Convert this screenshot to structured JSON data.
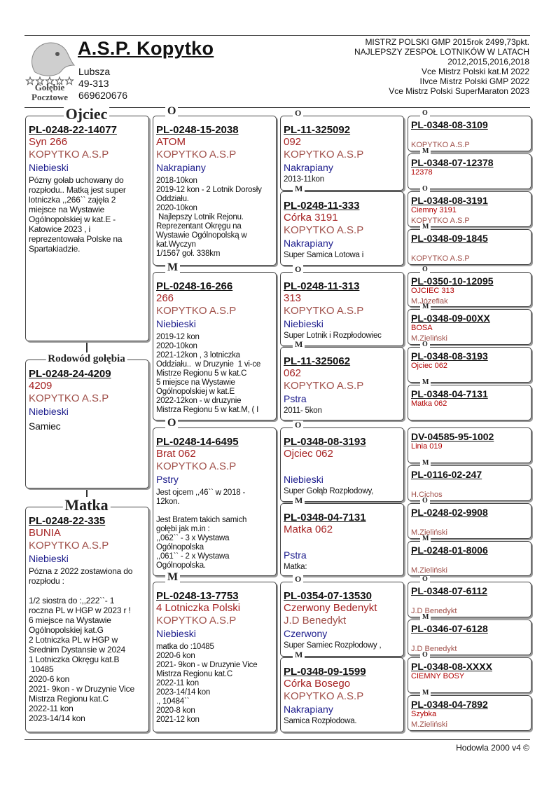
{
  "header": {
    "logo_lines": [
      "Gołębie",
      "Pocztowe"
    ],
    "title": "A.S.P. Kopytko",
    "address": [
      "Lubsza",
      "49-313",
      "669620676"
    ],
    "achievements": [
      "MISTRZ POLSKI GMP 2015rok 2499,73pkt.",
      "NAJLEPSZY ZESPOŁ LOTNIKÓW W LATACH",
      "2012,2015,2016,2018",
      "Vce Mistrz Polski kat.M 2022",
      "IIvce Mistrz Polski GMP 2022",
      "Vce Mistrz Polski SuperMaraton 2023"
    ]
  },
  "pedigree": {
    "sire": {
      "label": "Ojciec",
      "ring": "PL-0248-22-14077",
      "name": "Syn 266",
      "breeder": "KOPYTKO A.S.P",
      "color": "Niebieski",
      "notes": "Pózny gołab uchowany do\nrozpłodu.. Matką jest super\nlotniczka ,,266`` zajęła 2\nmiejsce na Wystawie\nOgólnopolskiej w kat.E -\nKatowice 2023 , i\nreprezentowała Polske na\nSpartakiadzie."
    },
    "subject": {
      "label": "Rodowód gołębia",
      "ring": "PL-0248-24-4209",
      "name": "4209",
      "breeder": "KOPYTKO A.S.P",
      "color": "Niebieski",
      "notes": "Samiec"
    },
    "dam": {
      "label": "Matka",
      "ring": "PL-0248-22-335",
      "name": "BUNIA",
      "breeder": "KOPYTKO A.S.P",
      "color": "Niebieski",
      "notes": "Pózna z 2022 zostawiona do\nrozpłodu :\n\n1/2 siostra do :,,222``- 1\nroczna PL w HGP w 2023 r !\n6 miejsce na Wystawie\nOgólnopolskiej kat.G\n2 Lotniczka PL w HGP w\nSrednim Dystansie w 2024\n1 Lotniczka Okręgu kat.B\n 10485\n2020-6 kon\n2021- 9kon - w Druzynie Vice\nMistrza Regionu kat.C\n2022-11 kon\n2023-14/14 kon"
    },
    "generation_2": [
      {
        "label": "O",
        "ring": "PL-0248-15-2038",
        "name": "ATOM",
        "breeder": "KOPYTKO A.S.P",
        "color": "Nakrapiany",
        "notes": "2018-10kon\n2019-12 kon - 2 Lotnik Dorosły\nOddziału.\n2020-10kon\n Najlepszy Lotnik Rejonu.\nReprezentant Okręgu na\nWystawie Ogólnopolską w\nkat.Wyczyn\n1/1567 goł. 338km"
      },
      {
        "label": "M",
        "ring": "PL-0248-16-266",
        "name": "266",
        "breeder": "KOPYTKO A.S.P",
        "color": "Niebieski",
        "notes": "2019-12 kon\n2020-10kon\n2021-12kon , 3 lotniczka\nOddziału..  w Druzynie  1 vi-ce\nMistrze Regionu 5 w kat.C\n5 miejsce na Wystawie\nOgólnopolskiej w kat.E\n2022-12kon - w druzynie\nMistrza Regionu 5 w kat.M, ( I"
      },
      {
        "label": "O",
        "ring": "PL-0248-14-6495",
        "name": "Brat 062",
        "breeder": "KOPYTKO A.S.P",
        "color": "Pstry",
        "notes": "Jest ojcem ,,46`` w 2018 -\n12kon.\n\nJest Bratem takich samich\ngołębi jak m.in :\n,,062`` - 3 x Wystawa\nOgólnopolska\n,,061`` - 2 x Wystawa\nOgólnopolska."
      },
      {
        "label": "M",
        "ring": "PL-0248-13-7753",
        "name": "4 Lotniczka Polski",
        "breeder": "KOPYTKO A.S.P",
        "color": "Niebieski",
        "notes": "matka do :10485\n2020-6 kon\n2021- 9kon - w Druzynie Vice\nMistrza Regionu kat.C\n2022-11 kon\n2023-14/14 kon\n., 10484``\n2020-8 kon\n2021-12 kon"
      }
    ],
    "generation_3": [
      {
        "label": "O",
        "ring": "PL-11-325092",
        "name": "092",
        "breeder": "KOPYTKO A.S.P",
        "color": "Nakrapiany",
        "notes": "2013-11kon"
      },
      {
        "label": "M",
        "ring": "PL-0248-11-333",
        "name": "Córka 3191",
        "breeder": "KOPYTKO A.S.P",
        "color": "Nakrapiany",
        "notes": "Super Samica Lotowa i"
      },
      {
        "label": "O",
        "ring": "PL-0248-11-313",
        "name": "313",
        "breeder": "KOPYTKO A.S.P",
        "color": "Niebieski",
        "notes": "Super Lotnik i Rozpłodowiec"
      },
      {
        "label": "M",
        "ring": "PL-11-325062",
        "name": "062",
        "breeder": "KOPYTKO A.S.P",
        "color": "Pstra",
        "notes": "2011- 5kon"
      },
      {
        "label": "O",
        "ring": "PL-0348-08-3193",
        "name": "Ojciec 062",
        "color": "Niebieski",
        "notes": "Super Gołąb Rozpłodowy,"
      },
      {
        "label": "M",
        "ring": "PL-0348-04-7131",
        "name": "Matka 062",
        "color": "Pstra",
        "notes": "Matka:"
      },
      {
        "label": "O",
        "ring": "PL-0354-07-13530",
        "name": "Czerwony Bedenykt",
        "breeder": "J.D Benedykt",
        "color": "Czerwony",
        "notes": "Super Samiec Rozpłodowy ,"
      },
      {
        "label": "M",
        "ring": "PL-0348-09-1599",
        "name": "Córka Bosego",
        "breeder": "KOPYTKO A.S.P",
        "color": "Nakrapiany",
        "notes": "Samica Rozpłodowa."
      }
    ],
    "generation_4": [
      {
        "label": "O",
        "ring": "PL-0348-08-3109",
        "breeder": "KOPYTKO A.S.P"
      },
      {
        "label": "M",
        "ring": "PL-0348-07-12378",
        "name": "12378"
      },
      {
        "label": "O",
        "ring": "PL-0348-08-3191",
        "name": "Ciemny 3191",
        "breeder": "KOPYTKO A.S.P"
      },
      {
        "label": "M",
        "ring": "PL-0348-09-1845",
        "breeder": "KOPYTKO A.S.P"
      },
      {
        "label": "O",
        "ring": "PL-0350-10-12095",
        "name": "OJCIEC 313",
        "breeder": "M.Józefiak"
      },
      {
        "label": "M",
        "ring": "PL-0348-09-00XX",
        "name": "BOSA",
        "breeder": "M.Zieliński"
      },
      {
        "label": "O",
        "ring": "PL-0348-08-3193",
        "name": "Ojciec 062"
      },
      {
        "label": "M",
        "ring": "PL-0348-04-7131",
        "name": "Matka 062"
      },
      {
        "ring": "DV-04585-95-1002",
        "name": "Linia 019"
      },
      {
        "label": "M",
        "ring": "PL-0116-02-247",
        "breeder": "H.Cichos"
      },
      {
        "label": "O",
        "ring": "PL-0248-02-9908",
        "breeder": "M.Zieliński"
      },
      {
        "label": "M",
        "ring": "PL-0248-01-8006",
        "breeder": "M.Zieliński"
      },
      {
        "label": "O",
        "ring": "PL-0348-07-6112",
        "breeder": "J.D Benedykt"
      },
      {
        "label": "M",
        "ring": "PL-0346-07-6128",
        "breeder": "J.D Benedykt"
      },
      {
        "label": "O",
        "ring": "PL-0348-08-XXXX",
        "name": "CIEMNY BOSY"
      },
      {
        "label": "M",
        "ring": "PL-0348-04-7892",
        "name": "Szybka",
        "breeder": "M.Zieliński"
      }
    ]
  },
  "footer": "Hodowla 2000 v4 ©"
}
